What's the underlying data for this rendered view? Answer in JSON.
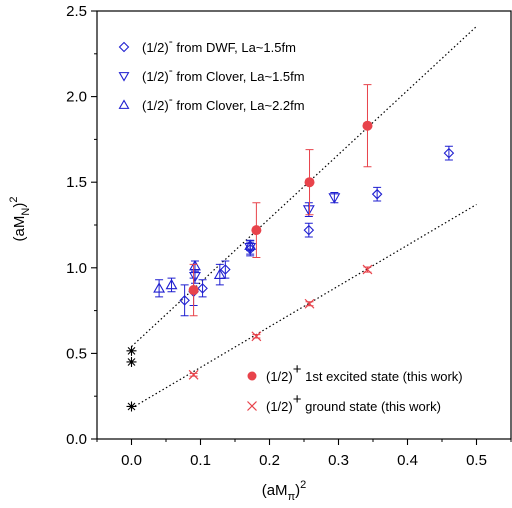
{
  "chart_data": {
    "type": "scatter",
    "title": "",
    "xlabel": {
      "base": "(aM",
      "sub": "π",
      "close": ")",
      "sup": "2"
    },
    "ylabel": {
      "base": "(aM",
      "sub": "N",
      "close": ")",
      "sup": "2"
    },
    "xlim": [
      -0.05,
      0.55
    ],
    "ylim": [
      0.0,
      2.5
    ],
    "x_ticks": [
      0.0,
      0.1,
      0.2,
      0.3,
      0.4,
      0.5
    ],
    "x_tick_labels": [
      "0.0",
      "0.1",
      "0.2",
      "0.3",
      "0.4",
      "0.5"
    ],
    "y_ticks": [
      0.0,
      0.5,
      1.0,
      1.5,
      2.0,
      2.5
    ],
    "y_tick_labels": [
      "0.0",
      "0.5",
      "1.0",
      "1.5",
      "2.0",
      "2.5"
    ],
    "grid": false,
    "colors": {
      "red": "#e8434b",
      "blue": "#1f1fd0",
      "black": "#000000"
    },
    "series": [
      {
        "name": "(1/2)⁻ from DWF, La~1.5fm",
        "legend_base": "(1/2)",
        "legend_sup": "-",
        "legend_rest": " from DWF, La~1.5fm",
        "marker": "diamond",
        "color": "#1f1fd0",
        "legend_position": "top-left",
        "points": [
          {
            "x": 0.077,
            "y": 0.81,
            "err": 0.09
          },
          {
            "x": 0.09,
            "y": 0.86,
            "err": 0.08
          },
          {
            "x": 0.103,
            "y": 0.88,
            "err": 0.05
          },
          {
            "x": 0.136,
            "y": 0.99,
            "err": 0.05
          },
          {
            "x": 0.172,
            "y": 1.11,
            "err": 0.04
          },
          {
            "x": 0.257,
            "y": 1.22,
            "err": 0.04
          },
          {
            "x": 0.356,
            "y": 1.43,
            "err": 0.04
          },
          {
            "x": 0.46,
            "y": 1.67,
            "err": 0.04
          }
        ]
      },
      {
        "name": "(1/2)⁻ from Clover, La~1.5fm",
        "legend_base": "(1/2)",
        "legend_sup": "-",
        "legend_rest": " from Clover, La~1.5fm",
        "marker": "triangle-down",
        "color": "#1f1fd0",
        "points": [
          {
            "x": 0.092,
            "y": 0.95,
            "err": 0.04
          },
          {
            "x": 0.172,
            "y": 1.12,
            "err": 0.04
          },
          {
            "x": 0.257,
            "y": 1.34,
            "err": 0.04
          },
          {
            "x": 0.294,
            "y": 1.41,
            "err": 0.03
          }
        ]
      },
      {
        "name": "(1/2)⁻ from Clover, La~2.2fm",
        "legend_base": "(1/2)",
        "legend_sup": "-",
        "legend_rest": " from Clover, La~2.2fm",
        "marker": "triangle-up",
        "color": "#1f1fd0",
        "points": [
          {
            "x": 0.04,
            "y": 0.88,
            "err": 0.05
          },
          {
            "x": 0.058,
            "y": 0.9,
            "err": 0.04
          },
          {
            "x": 0.092,
            "y": 1.01,
            "err": 0.03
          },
          {
            "x": 0.128,
            "y": 0.96,
            "err": 0.06
          },
          {
            "x": 0.172,
            "y": 1.13,
            "err": 0.03
          }
        ]
      },
      {
        "name": "(1/2)⁺ 1st excited state (this work)",
        "legend_base": "(1/2)",
        "legend_sup": "+",
        "legend_rest": " 1st excited state (this work)",
        "marker": "filled-circle",
        "color": "#e8434b",
        "legend_position": "bottom-right",
        "points": [
          {
            "x": 0.09,
            "y": 0.87,
            "err": 0.15
          },
          {
            "x": 0.181,
            "y": 1.22,
            "err": 0.16
          },
          {
            "x": 0.258,
            "y": 1.5,
            "err": 0.19
          },
          {
            "x": 0.342,
            "y": 1.83,
            "err": 0.24
          }
        ]
      },
      {
        "name": "(1/2)⁺ ground state (this work)",
        "legend_base": "(1/2)",
        "legend_sup": "+",
        "legend_rest": " ground state (this work)",
        "marker": "x",
        "color": "#e8434b",
        "points": [
          {
            "x": 0.09,
            "y": 0.375,
            "err": 0.008
          },
          {
            "x": 0.181,
            "y": 0.6,
            "err": 0.01
          },
          {
            "x": 0.258,
            "y": 0.79,
            "err": 0.012
          },
          {
            "x": 0.342,
            "y": 0.99,
            "err": 0.015
          }
        ]
      }
    ],
    "extrapolated_points": {
      "marker": "asterisk",
      "color": "#000000",
      "points": [
        {
          "x": 0.0,
          "y": 0.515
        },
        {
          "x": 0.0,
          "y": 0.45
        },
        {
          "x": 0.0,
          "y": 0.19
        }
      ]
    },
    "fit_lines": [
      {
        "style": "dotted",
        "color": "#000000",
        "x": [
          0.0,
          0.5
        ],
        "y": [
          0.54,
          2.41
        ]
      },
      {
        "style": "dotted",
        "color": "#000000",
        "x": [
          0.0,
          0.5
        ],
        "y": [
          0.18,
          1.37
        ]
      }
    ]
  }
}
